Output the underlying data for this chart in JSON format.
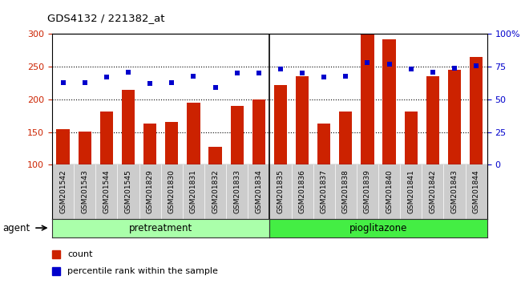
{
  "title": "GDS4132 / 221382_at",
  "categories": [
    "GSM201542",
    "GSM201543",
    "GSM201544",
    "GSM201545",
    "GSM201829",
    "GSM201830",
    "GSM201831",
    "GSM201832",
    "GSM201833",
    "GSM201834",
    "GSM201835",
    "GSM201836",
    "GSM201837",
    "GSM201838",
    "GSM201839",
    "GSM201840",
    "GSM201841",
    "GSM201842",
    "GSM201843",
    "GSM201844"
  ],
  "bar_values": [
    155,
    151,
    181,
    215,
    163,
    165,
    195,
    127,
    190,
    200,
    222,
    236,
    163,
    181,
    300,
    292,
    182,
    236,
    245,
    265
  ],
  "dot_values": [
    63,
    63,
    67,
    71,
    62,
    63,
    68,
    59,
    70,
    70,
    73,
    70,
    67,
    68,
    78,
    77,
    73,
    71,
    74,
    76
  ],
  "pretreatment_count": 10,
  "pioglitazone_count": 10,
  "bar_color": "#cc2200",
  "dot_color": "#0000cc",
  "ylim_left": [
    100,
    300
  ],
  "ylim_right": [
    0,
    100
  ],
  "yticks_left": [
    100,
    150,
    200,
    250,
    300
  ],
  "yticks_right": [
    0,
    25,
    50,
    75,
    100
  ],
  "grid_values": [
    150,
    200,
    250
  ],
  "legend_count_label": "count",
  "legend_pct_label": "percentile rank within the sample",
  "pretreatment_label": "pretreatment",
  "pioglitazone_label": "pioglitazone",
  "agent_label": "agent",
  "pretreatment_color": "#aaffaa",
  "pioglitazone_color": "#44ee44",
  "tick_label_bg": "#cccccc"
}
